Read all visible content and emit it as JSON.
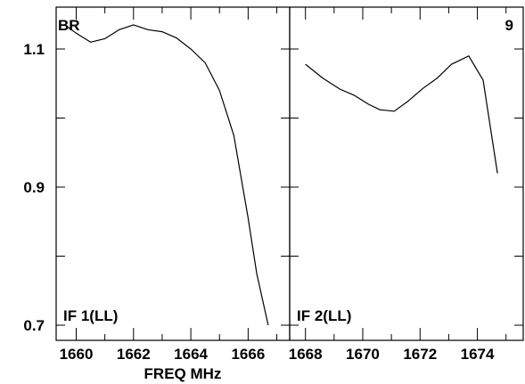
{
  "colors": {
    "line": "#000000",
    "frame": "#000000",
    "background": "#ffffff"
  },
  "chart_data": {
    "type": "line",
    "xlabel": "FREQ MHz",
    "ylabel": "",
    "ylim": [
      0.7,
      1.15
    ],
    "yticks": [
      {
        "value": 0.7,
        "label": "0.7"
      },
      {
        "value": 0.8,
        "label": ""
      },
      {
        "value": 0.9,
        "label": "0.9"
      },
      {
        "value": 1.0,
        "label": ""
      },
      {
        "value": 1.1,
        "label": "1.1"
      }
    ],
    "source_label": "BR",
    "panel_number": "9",
    "panels": [
      {
        "label": "IF 1(LL)",
        "xlim": [
          1659.3,
          1667.45
        ],
        "xticks": [
          1660,
          1662,
          1664,
          1666
        ],
        "xtick_labels": [
          "1660",
          "1662",
          "1664",
          "1666"
        ],
        "minor_xticks": [
          1661,
          1663,
          1665,
          1667
        ],
        "series": [
          {
            "x": [
              1659.6,
              1660.0,
              1660.5,
              1661.0,
              1661.5,
              1662.0,
              1662.5,
              1663.0,
              1663.5,
              1664.0,
              1664.5,
              1665.0,
              1665.5,
              1666.0,
              1666.3,
              1666.7
            ],
            "y": [
              1.135,
              1.123,
              1.11,
              1.115,
              1.128,
              1.135,
              1.128,
              1.125,
              1.116,
              1.1,
              1.08,
              1.04,
              0.975,
              0.855,
              0.775,
              0.7
            ]
          }
        ]
      },
      {
        "label": "IF 2(LL)",
        "xlim": [
          1667.45,
          1675.6
        ],
        "xticks": [
          1668,
          1670,
          1672,
          1674
        ],
        "xtick_labels": [
          "1668",
          "1670",
          "1672",
          "1674"
        ],
        "minor_xticks": [
          1669,
          1671,
          1673,
          1675
        ],
        "series": [
          {
            "x": [
              1668.0,
              1668.6,
              1669.2,
              1669.7,
              1670.2,
              1670.6,
              1671.1,
              1671.6,
              1672.1,
              1672.6,
              1673.1,
              1673.7,
              1674.2,
              1674.7
            ],
            "y": [
              1.078,
              1.058,
              1.042,
              1.033,
              1.02,
              1.012,
              1.01,
              1.025,
              1.043,
              1.058,
              1.078,
              1.09,
              1.055,
              0.92
            ]
          }
        ]
      }
    ]
  }
}
